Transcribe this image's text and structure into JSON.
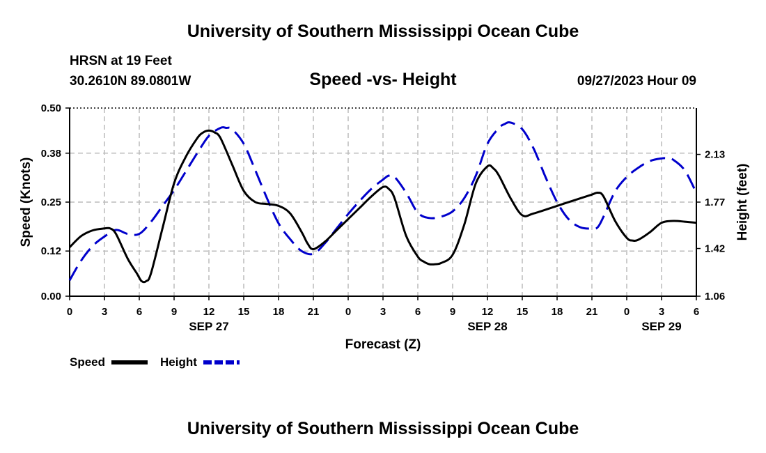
{
  "header": {
    "title": "University of Southern Mississippi Ocean Cube",
    "station": "HRSN at 19 Feet",
    "coords": "30.2610N  89.0801W",
    "subtitle": "Speed -vs- Height",
    "datetime": "09/27/2023 Hour 09"
  },
  "footer": {
    "title": "University of Southern Mississippi Ocean Cube"
  },
  "chart_data": {
    "type": "line",
    "xlabel": "Forecast (Z)",
    "ylabel": "Speed (Knots)",
    "ylabel_right": "Height (feet)",
    "x_hours": [
      0,
      3,
      6,
      9,
      12,
      15,
      18,
      21,
      24,
      27,
      30,
      33,
      36,
      39,
      42,
      45,
      48,
      51,
      54
    ],
    "x_tick_labels": [
      "0",
      "3",
      "6",
      "9",
      "12",
      "15",
      "18",
      "21",
      "0",
      "3",
      "6",
      "9",
      "12",
      "15",
      "18",
      "21",
      "0",
      "3",
      "6"
    ],
    "date_labels": [
      {
        "label": "SEP 27",
        "hour": 12
      },
      {
        "label": "SEP 28",
        "hour": 36
      },
      {
        "label": "SEP 29",
        "hour": 51
      }
    ],
    "xlim": [
      0,
      54
    ],
    "ylim_left": [
      0,
      0.5
    ],
    "yticks_left": [
      "0.00",
      "0.12",
      "0.25",
      "0.38",
      "0.50"
    ],
    "ylim_right": [
      1.06,
      2.48
    ],
    "yticks_right": [
      {
        "label": "1.06",
        "value": 1.06
      },
      {
        "label": "1.42",
        "value": 1.42
      },
      {
        "label": "1.77",
        "value": 1.77
      },
      {
        "label": "2.13",
        "value": 2.13
      }
    ],
    "grid": true,
    "legend_position": "bottom-left",
    "series": [
      {
        "name": "Speed",
        "axis": "left",
        "color": "#000000",
        "dash": "solid",
        "x": [
          0,
          1,
          2,
          3,
          3.5,
          4,
          5,
          5.8,
          6.2,
          6.6,
          7,
          8,
          9,
          10,
          11,
          11.5,
          12,
          12.5,
          13,
          14,
          15,
          16,
          17,
          18,
          19,
          20,
          20.5,
          21,
          22,
          23,
          24,
          25,
          26,
          27,
          27.5,
          28,
          29,
          30,
          30.5,
          31,
          31.5,
          32,
          33,
          34,
          35,
          36,
          36.5,
          37,
          38,
          39,
          40,
          42,
          44,
          45,
          45.5,
          46,
          47,
          48,
          48.5,
          49,
          50,
          51,
          52,
          53,
          54
        ],
        "y": [
          0.13,
          0.16,
          0.175,
          0.18,
          0.18,
          0.165,
          0.1,
          0.06,
          0.04,
          0.04,
          0.06,
          0.18,
          0.3,
          0.37,
          0.42,
          0.435,
          0.44,
          0.435,
          0.42,
          0.35,
          0.28,
          0.25,
          0.245,
          0.24,
          0.22,
          0.17,
          0.14,
          0.125,
          0.145,
          0.175,
          0.205,
          0.235,
          0.265,
          0.29,
          0.285,
          0.26,
          0.16,
          0.105,
          0.092,
          0.085,
          0.085,
          0.088,
          0.11,
          0.19,
          0.3,
          0.345,
          0.34,
          0.32,
          0.26,
          0.215,
          0.22,
          0.24,
          0.26,
          0.27,
          0.275,
          0.265,
          0.2,
          0.155,
          0.148,
          0.15,
          0.17,
          0.195,
          0.2,
          0.198,
          0.195
        ]
      },
      {
        "name": "Height",
        "axis": "right",
        "color": "#0000cc",
        "dash": "dashed",
        "x": [
          0,
          1,
          2,
          3,
          4,
          5,
          6,
          7,
          8,
          9,
          10,
          11,
          12,
          13,
          13.5,
          14,
          15,
          16,
          17,
          18,
          19,
          20,
          21,
          22,
          23,
          24,
          25,
          26,
          27,
          27.5,
          28,
          29,
          30,
          31,
          32,
          33,
          34,
          35,
          36,
          37,
          37.5,
          38,
          39,
          40,
          41,
          42,
          43,
          44,
          45,
          45.5,
          46,
          47,
          48,
          49,
          50,
          51,
          51.5,
          52,
          53,
          54
        ],
        "y": [
          1.18,
          1.33,
          1.44,
          1.51,
          1.56,
          1.53,
          1.53,
          1.62,
          1.74,
          1.86,
          2.0,
          2.14,
          2.27,
          2.33,
          2.33,
          2.32,
          2.21,
          2.01,
          1.8,
          1.61,
          1.49,
          1.4,
          1.38,
          1.46,
          1.57,
          1.68,
          1.78,
          1.87,
          1.94,
          1.97,
          1.96,
          1.84,
          1.69,
          1.65,
          1.66,
          1.7,
          1.8,
          1.97,
          2.21,
          2.33,
          2.36,
          2.37,
          2.32,
          2.17,
          1.96,
          1.77,
          1.64,
          1.58,
          1.57,
          1.58,
          1.66,
          1.85,
          1.96,
          2.03,
          2.08,
          2.1,
          2.1,
          2.09,
          2.01,
          1.84
        ]
      }
    ]
  }
}
